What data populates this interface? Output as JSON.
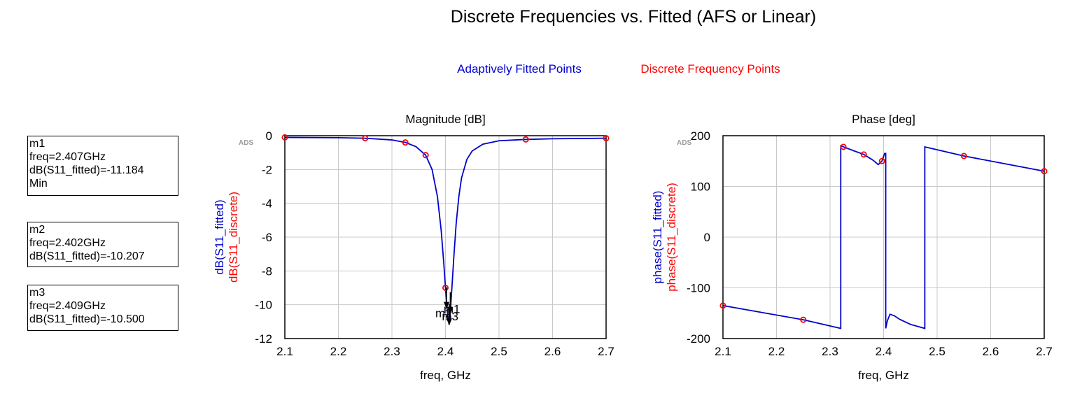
{
  "page_title": "Discrete Frequencies vs. Fitted (AFS or Linear)",
  "legend": {
    "fitted_label": "Adaptively Fitted Points",
    "discrete_label": "Discrete Frequency Points",
    "fitted_color": "#0000cc",
    "discrete_color": "#ff0000"
  },
  "markers": [
    {
      "name": "m1",
      "freq": "freq=2.407GHz",
      "value": "dB(S11_fitted)=-11.184",
      "extra": "Min"
    },
    {
      "name": "m2",
      "freq": "freq=2.402GHz",
      "value": "dB(S11_fitted)=-10.207",
      "extra": ""
    },
    {
      "name": "m3",
      "freq": "freq=2.409GHz",
      "value": "dB(S11_fitted)=-10.500",
      "extra": ""
    }
  ],
  "chart_data": [
    {
      "type": "line",
      "title": "Magnitude [dB]",
      "watermark": "ADS",
      "xlabel": "freq, GHz",
      "ylabel_fitted": "dB(S11_fitted)",
      "ylabel_discrete": "dB(S11_discrete)",
      "xlim": [
        2.1,
        2.7
      ],
      "ylim": [
        -12,
        0
      ],
      "xticks": [
        2.1,
        2.2,
        2.3,
        2.4,
        2.5,
        2.6,
        2.7
      ],
      "yticks": [
        0,
        -2,
        -4,
        -6,
        -8,
        -10,
        -12
      ],
      "grid": true,
      "series": [
        {
          "name": "dB(S11_fitted)",
          "color": "#0000cc",
          "x": [
            2.1,
            2.2,
            2.25,
            2.3,
            2.325,
            2.345,
            2.363,
            2.375,
            2.385,
            2.392,
            2.397,
            2.4,
            2.403,
            2.405,
            2.407,
            2.409,
            2.412,
            2.416,
            2.42,
            2.425,
            2.43,
            2.44,
            2.45,
            2.47,
            2.5,
            2.55,
            2.6,
            2.7
          ],
          "y": [
            -0.1,
            -0.12,
            -0.15,
            -0.25,
            -0.4,
            -0.65,
            -1.15,
            -2.0,
            -3.6,
            -5.6,
            -7.6,
            -9.0,
            -10.2,
            -10.9,
            -11.18,
            -10.5,
            -9.0,
            -7.0,
            -5.2,
            -3.6,
            -2.5,
            -1.4,
            -0.9,
            -0.5,
            -0.3,
            -0.22,
            -0.18,
            -0.15
          ]
        },
        {
          "name": "dB(S11_discrete)",
          "color": "#ff0000",
          "marker": "circle",
          "x": [
            2.1,
            2.25,
            2.325,
            2.363,
            2.4,
            2.55,
            2.7
          ],
          "y": [
            -0.1,
            -0.15,
            -0.4,
            -1.15,
            -9.0,
            -0.22,
            -0.15
          ]
        }
      ],
      "marker_points": [
        {
          "name": "m1",
          "x": 2.407,
          "y": -11.184
        },
        {
          "name": "m2",
          "x": 2.402,
          "y": -10.207
        },
        {
          "name": "m3",
          "x": 2.409,
          "y": -10.5
        }
      ]
    },
    {
      "type": "line",
      "title": "Phase [deg]",
      "watermark": "ADS",
      "xlabel": "freq, GHz",
      "ylabel_fitted": "phase(S11_fitted)",
      "ylabel_discrete": "phase(S11_discrete)",
      "xlim": [
        2.1,
        2.7
      ],
      "ylim": [
        -200,
        200
      ],
      "xticks": [
        2.1,
        2.2,
        2.3,
        2.4,
        2.5,
        2.6,
        2.7
      ],
      "yticks": [
        200,
        100,
        0,
        -100,
        -200
      ],
      "grid": true,
      "series": [
        {
          "name": "phase(S11_fitted)",
          "color": "#0000cc",
          "x": [
            2.1,
            2.25,
            2.32,
            2.32,
            2.325,
            2.345,
            2.363,
            2.38,
            2.39,
            2.397,
            2.402,
            2.404,
            2.404,
            2.407,
            2.412,
            2.42,
            2.43,
            2.45,
            2.477,
            2.477,
            2.55,
            2.7
          ],
          "y": [
            -135,
            -163,
            -180,
            180,
            178,
            170,
            163,
            152,
            143,
            150,
            165,
            165,
            -180,
            -165,
            -152,
            -155,
            -162,
            -172,
            -180,
            178,
            160,
            130
          ]
        },
        {
          "name": "phase(S11_discrete)",
          "color": "#ff0000",
          "marker": "circle",
          "x": [
            2.1,
            2.25,
            2.325,
            2.363,
            2.397,
            2.55,
            2.7
          ],
          "y": [
            -135,
            -163,
            178,
            163,
            150,
            160,
            130
          ]
        }
      ]
    }
  ]
}
